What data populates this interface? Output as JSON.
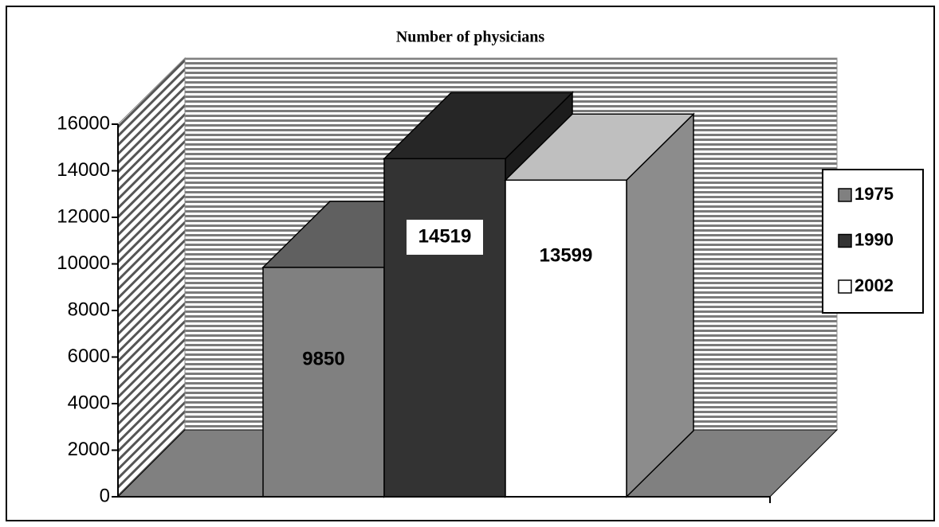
{
  "chart_data": {
    "type": "bar",
    "title": "Number of physicians",
    "categories": [
      null
    ],
    "series": [
      {
        "name": "1975",
        "color": "#808080",
        "values": [
          9850
        ]
      },
      {
        "name": "1990",
        "color": "#333333",
        "values": [
          14519
        ]
      },
      {
        "name": "2002",
        "color": "#ffffff",
        "values": [
          13599
        ]
      }
    ],
    "ylim": [
      0,
      16000
    ],
    "yticks": [
      0,
      2000,
      4000,
      6000,
      8000,
      10000,
      12000,
      14000,
      16000
    ],
    "legend": "right"
  }
}
